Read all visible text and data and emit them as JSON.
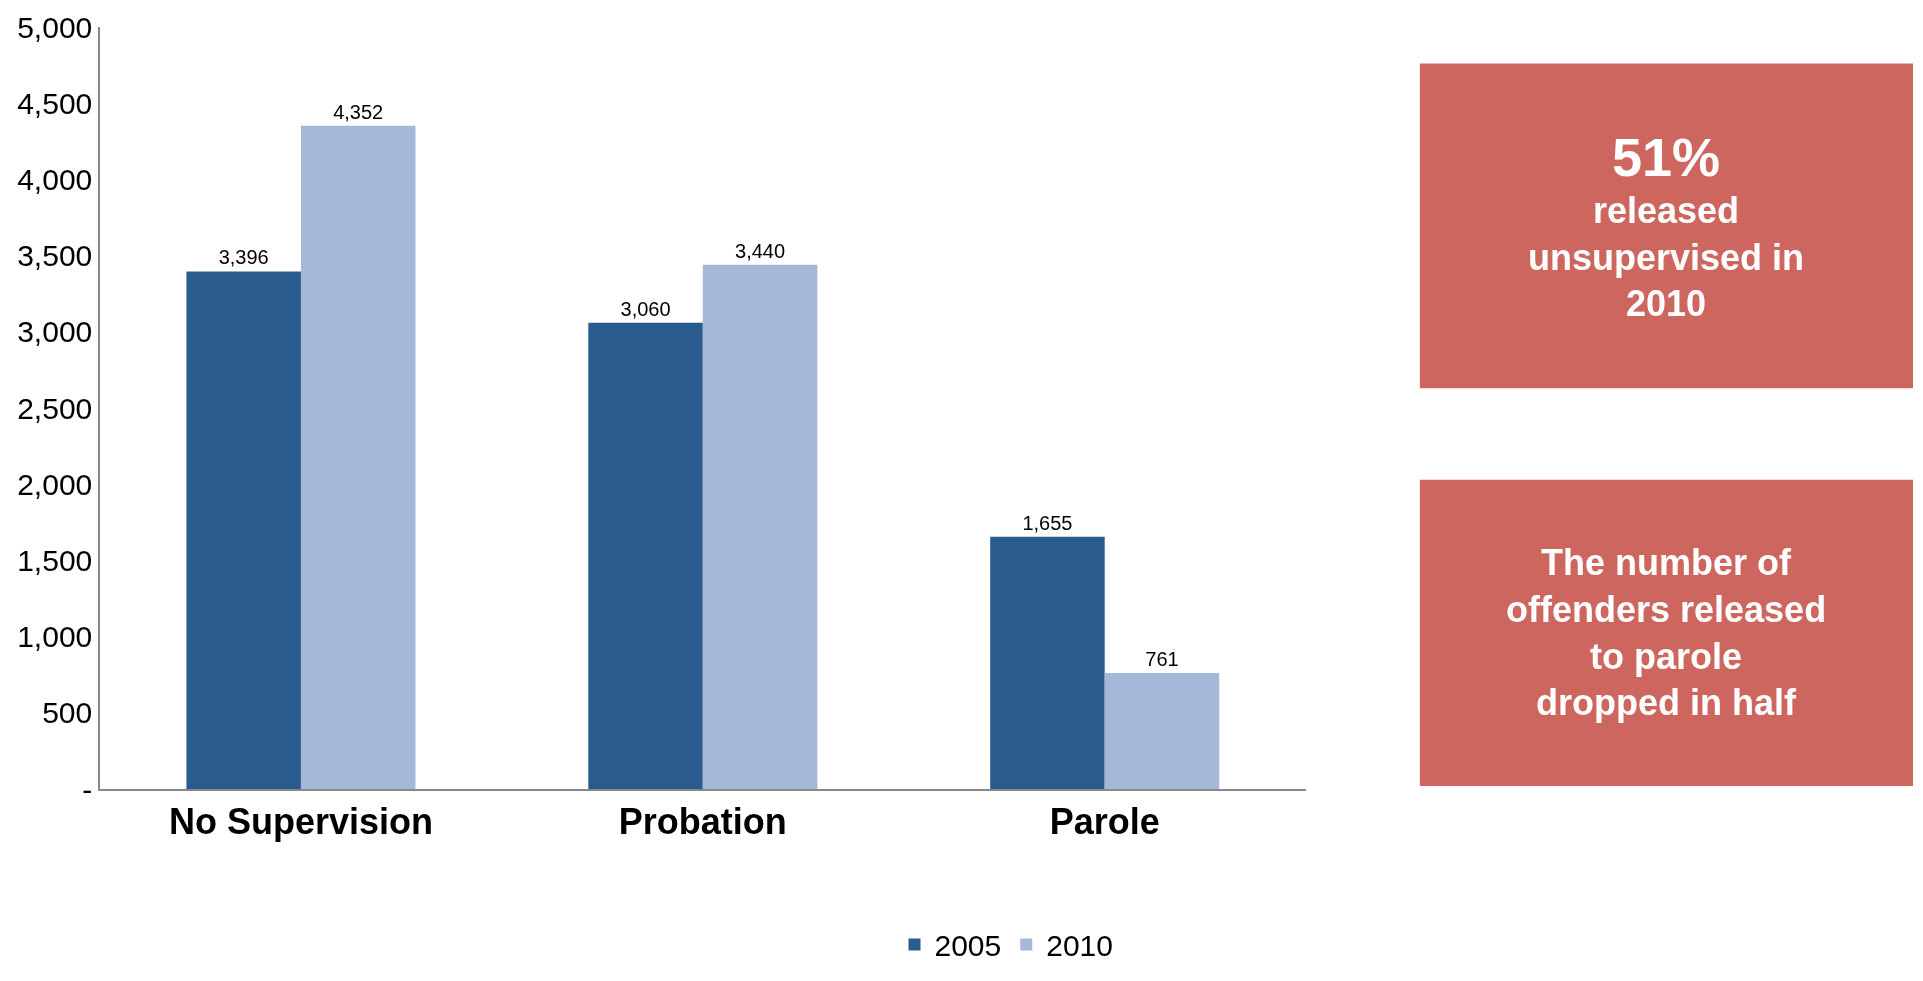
{
  "chart_data": {
    "type": "bar",
    "categories": [
      "No Supervision",
      "Probation",
      "Parole"
    ],
    "series": [
      {
        "name": "2005",
        "color": "#2a5b8e",
        "values": [
          3396,
          3060,
          1655
        ],
        "value_labels": [
          "3,396",
          "3,060",
          "1,655"
        ]
      },
      {
        "name": "2010",
        "color": "#a5b8d8",
        "values": [
          4352,
          3440,
          761
        ],
        "value_labels": [
          "4,352",
          "3,440",
          "761"
        ]
      }
    ],
    "ylim": [
      0,
      5000
    ],
    "yticks": [
      {
        "value": 0,
        "label": "-"
      },
      {
        "value": 500,
        "label": "500"
      },
      {
        "value": 1000,
        "label": "1,000"
      },
      {
        "value": 1500,
        "label": "1,500"
      },
      {
        "value": 2000,
        "label": "2,000"
      },
      {
        "value": 2500,
        "label": "2,500"
      },
      {
        "value": 3000,
        "label": "3,000"
      },
      {
        "value": 3500,
        "label": "3,500"
      },
      {
        "value": 4000,
        "label": "4,000"
      },
      {
        "value": 4500,
        "label": "4,500"
      },
      {
        "value": 5000,
        "label": "5,000"
      }
    ],
    "legend": "bottom",
    "annotations": [
      "51%\nreleased\nunsupervised in\n2010",
      "The number of\noffenders released\nto parole\ndropped in half"
    ]
  }
}
